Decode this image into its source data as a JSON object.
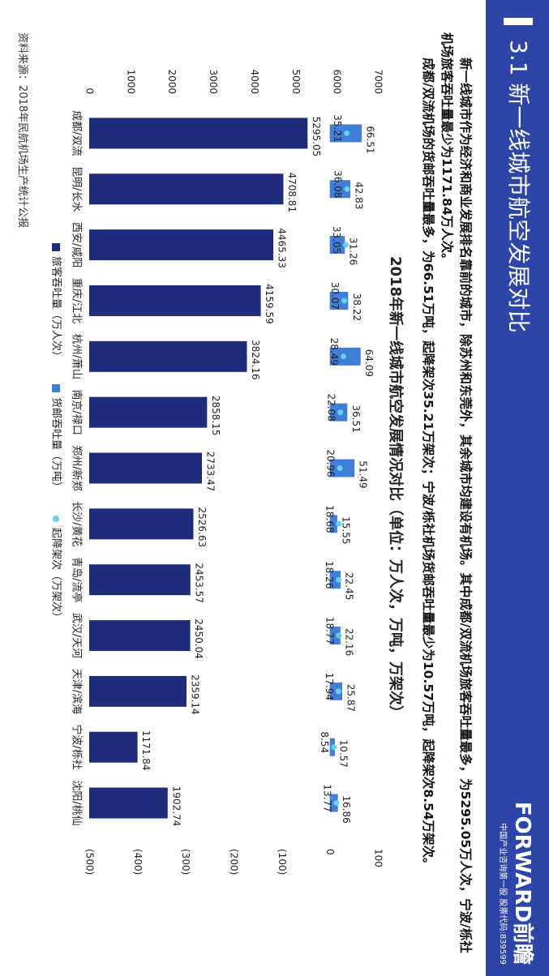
{
  "header": {
    "title": "3.1 新一线城市航空发展对比",
    "logo": "FORWARD前瞻",
    "tagline": "中国产业咨询第一股 股票代码:839599"
  },
  "paragraphs": [
    "新一线城市作为经济和商业发展排名靠前的城市，除苏州和东莞外，其余城市均建设有机场。其中成都/双流机场旅客吞吐量最多，为5295.05万人次，宁波/栎社机场旅客吞吐量最少为1171.84万人次。",
    "成都/双流机场的货邮吞吐量最多，为66.51万吨，起降架次35.21万架次；宁波/栎社机场货邮吞吐量最少为10.57万吨，起降架次8.54万架次。"
  ],
  "source": "资料来源：2018年民航机场生产统计公报",
  "chart_data": {
    "type": "bar",
    "title": "2018年新一线城市航空发展情况对比（单位：万人次，万吨，万架次）",
    "categories": [
      "成都/双流",
      "昆明/长水",
      "西安/咸阳",
      "重庆/江北",
      "杭州/萧山",
      "南京/禄口",
      "郑州/新郑",
      "长沙/黄花",
      "青岛/流亭",
      "武汉/天河",
      "天津/滨海",
      "宁波/栎社",
      "沈阳/桃仙"
    ],
    "series": [
      {
        "name": "旅客吞吐量（万人次）",
        "type": "bar",
        "color": "#1f2b7b",
        "values": [
          5295.05,
          4708.81,
          4465.33,
          4159.59,
          3824.16,
          2858.15,
          2733.47,
          2526.63,
          2453.57,
          2450.04,
          2359.14,
          1171.84,
          1902.74
        ]
      },
      {
        "name": "货邮吞吐量（万吨）",
        "type": "bar",
        "axis": "y2",
        "color": "#3f7fd9",
        "values": [
          66.51,
          42.83,
          31.26,
          38.22,
          64.09,
          36.51,
          51.49,
          15.55,
          22.45,
          22.16,
          25.87,
          10.57,
          16.86
        ]
      },
      {
        "name": "起降架次（万架次）",
        "type": "dot",
        "axis": "y2",
        "color": "#5fd3e8",
        "values": [
          35.21,
          36.08,
          33.05,
          30.07,
          28.49,
          22.08,
          20.96,
          18.68,
          18.26,
          18.77,
          17.94,
          8.54,
          13.77
        ]
      }
    ],
    "ylim": [
      0,
      7000
    ],
    "yticks": [
      0,
      1000,
      2000,
      3000,
      4000,
      5000,
      6000,
      7000
    ],
    "y2lim": [
      -500,
      100
    ],
    "y2ticks": [
      {
        "value": -500,
        "label": "(500)"
      },
      {
        "value": -400,
        "label": "(400)"
      },
      {
        "value": -300,
        "label": "(300)"
      },
      {
        "value": -200,
        "label": "(200)"
      },
      {
        "value": -100,
        "label": "(100)"
      },
      0,
      100
    ],
    "legend": "bottom"
  }
}
